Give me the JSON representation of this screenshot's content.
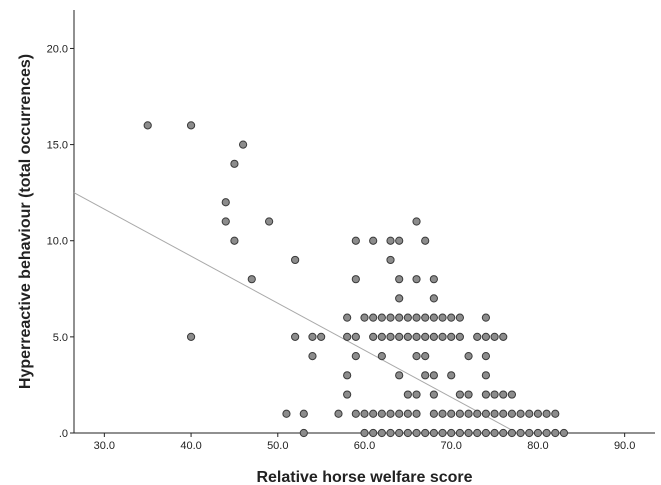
{
  "chart_data": {
    "type": "scatter",
    "title": "",
    "xlabel": "Relative horse welfare score",
    "ylabel": "Hyperreactive behaviour (total occurrences)",
    "xlim": [
      26.5,
      93.5
    ],
    "ylim": [
      0,
      22
    ],
    "xticks": [
      30,
      40,
      50,
      60,
      70,
      80,
      90
    ],
    "xtick_labels": [
      "30.0",
      "40.0",
      "50.0",
      "60.0",
      "70.0",
      "80.0",
      "90.0"
    ],
    "yticks": [
      0,
      5,
      10,
      15,
      20
    ],
    "ytick_labels": [
      ".0",
      "5.0",
      "10.0",
      "15.0",
      "20.0"
    ],
    "grid": false,
    "fit_line": {
      "x": [
        26.5,
        77.6
      ],
      "y": [
        12.5,
        0
      ]
    },
    "points": [
      [
        35,
        16
      ],
      [
        40,
        16
      ],
      [
        46,
        15
      ],
      [
        45,
        14
      ],
      [
        44,
        12
      ],
      [
        44,
        11
      ],
      [
        49,
        11
      ],
      [
        45,
        10
      ],
      [
        47,
        8
      ],
      [
        52,
        9
      ],
      [
        40,
        5
      ],
      [
        66,
        11
      ],
      [
        59,
        10
      ],
      [
        61,
        10
      ],
      [
        63,
        10
      ],
      [
        64,
        10
      ],
      [
        67,
        10
      ],
      [
        63,
        9
      ],
      [
        59,
        8
      ],
      [
        64,
        8
      ],
      [
        66,
        8
      ],
      [
        68,
        8
      ],
      [
        64,
        7
      ],
      [
        68,
        7
      ],
      [
        58,
        6
      ],
      [
        60,
        6
      ],
      [
        61,
        6
      ],
      [
        62,
        6
      ],
      [
        63,
        6
      ],
      [
        64,
        6
      ],
      [
        65,
        6
      ],
      [
        66,
        6
      ],
      [
        67,
        6
      ],
      [
        68,
        6
      ],
      [
        69,
        6
      ],
      [
        70,
        6
      ],
      [
        71,
        6
      ],
      [
        74,
        6
      ],
      [
        52,
        5
      ],
      [
        54,
        5
      ],
      [
        55,
        5
      ],
      [
        58,
        5
      ],
      [
        59,
        5
      ],
      [
        61,
        5
      ],
      [
        62,
        5
      ],
      [
        63,
        5
      ],
      [
        64,
        5
      ],
      [
        65,
        5
      ],
      [
        66,
        5
      ],
      [
        67,
        5
      ],
      [
        68,
        5
      ],
      [
        69,
        5
      ],
      [
        70,
        5
      ],
      [
        71,
        5
      ],
      [
        73,
        5
      ],
      [
        74,
        5
      ],
      [
        75,
        5
      ],
      [
        76,
        5
      ],
      [
        54,
        4
      ],
      [
        59,
        4
      ],
      [
        62,
        4
      ],
      [
        66,
        4
      ],
      [
        67,
        4
      ],
      [
        72,
        4
      ],
      [
        74,
        4
      ],
      [
        58,
        3
      ],
      [
        64,
        3
      ],
      [
        67,
        3
      ],
      [
        68,
        3
      ],
      [
        70,
        3
      ],
      [
        74,
        3
      ],
      [
        58,
        2
      ],
      [
        65,
        2
      ],
      [
        66,
        2
      ],
      [
        68,
        2
      ],
      [
        71,
        2
      ],
      [
        72,
        2
      ],
      [
        74,
        2
      ],
      [
        75,
        2
      ],
      [
        76,
        2
      ],
      [
        77,
        2
      ],
      [
        51,
        1
      ],
      [
        53,
        1
      ],
      [
        57,
        1
      ],
      [
        59,
        1
      ],
      [
        60,
        1
      ],
      [
        61,
        1
      ],
      [
        62,
        1
      ],
      [
        63,
        1
      ],
      [
        64,
        1
      ],
      [
        65,
        1
      ],
      [
        66,
        1
      ],
      [
        68,
        1
      ],
      [
        69,
        1
      ],
      [
        70,
        1
      ],
      [
        71,
        1
      ],
      [
        72,
        1
      ],
      [
        73,
        1
      ],
      [
        74,
        1
      ],
      [
        75,
        1
      ],
      [
        76,
        1
      ],
      [
        77,
        1
      ],
      [
        78,
        1
      ],
      [
        79,
        1
      ],
      [
        80,
        1
      ],
      [
        81,
        1
      ],
      [
        82,
        1
      ],
      [
        53,
        0
      ],
      [
        60,
        0
      ],
      [
        61,
        0
      ],
      [
        62,
        0
      ],
      [
        63,
        0
      ],
      [
        64,
        0
      ],
      [
        65,
        0
      ],
      [
        66,
        0
      ],
      [
        67,
        0
      ],
      [
        68,
        0
      ],
      [
        69,
        0
      ],
      [
        70,
        0
      ],
      [
        71,
        0
      ],
      [
        72,
        0
      ],
      [
        73,
        0
      ],
      [
        74,
        0
      ],
      [
        75,
        0
      ],
      [
        76,
        0
      ],
      [
        77,
        0
      ],
      [
        78,
        0
      ],
      [
        79,
        0
      ],
      [
        80,
        0
      ],
      [
        81,
        0
      ],
      [
        82,
        0
      ],
      [
        83,
        0
      ]
    ]
  }
}
